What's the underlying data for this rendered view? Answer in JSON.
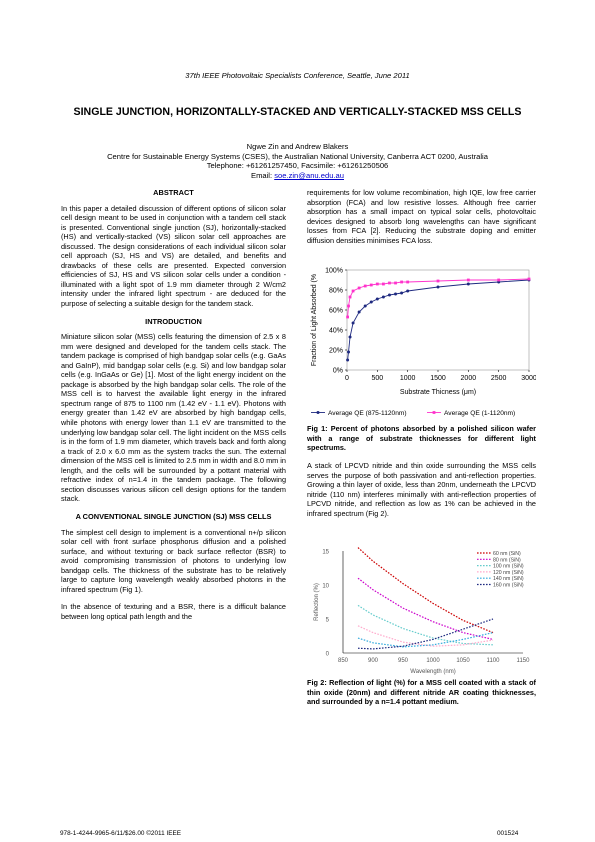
{
  "header": {
    "conference": "37th IEEE Photovoltaic Specialists Conference, Seattle, June 2011"
  },
  "paper": {
    "title": "SINGLE JUNCTION, HORIZONTALLY-STACKED AND VERTICALLY-STACKED MSS CELLS",
    "authors": "Ngwe Zin and Andrew Blakers",
    "affiliation": "Centre for Sustainable Energy Systems (CSES), the Australian National University, Canberra ACT 0200, Australia",
    "contact": "Telephone: +61261257450, Facsimile: +61261250506",
    "email_label": "Email: ",
    "email": "soe.zin@anu.edu.au"
  },
  "abstract": {
    "heading": "ABSTRACT",
    "text": "In this paper a detailed discussion of different options of silicon solar cell design meant to be used in conjunction with a tandem cell stack is presented. Conventional single junction (SJ), horizontally-stacked (HS) and vertically-stacked (VS) silicon solar cell approaches are discussed. The design considerations of each individual silicon solar cell approach (SJ, HS and VS) are detailed, and benefits and drawbacks of these cells are presented. Expected conversion efficiencies of SJ, HS and VS silicon solar cells under a condition - illuminated with a light spot of 1.9 mm diameter through 2 W/cm2 intensity under the infrared light spectrum - are deduced for the purpose of selecting a suitable design for the tandem stack."
  },
  "introduction": {
    "heading": "INTRODUCTION",
    "text": "Miniature silicon solar (MSS) cells featuring the dimension of 2.5 x 8 mm were designed and developed for the tandem cells stack. The tandem package is comprised of high bandgap solar cells (e.g. GaAs and GaInP), mid bandgap solar cells (e.g. Si) and low bandgap solar cells (e.g. InGaAs or Ge) [1]. Most of the light energy incident on the package is absorbed by the high bandgap solar cells. The role of the MSS cell is to harvest the available light energy in the infrared spectrum range of 875 to 1100 nm (1.42 eV - 1.1 eV). Photons with energy greater than 1.42 eV are absorbed by high bandgap cells, while photons with energy lower than 1.1 eV are transmitted to the underlying low bandgap solar cell. The light incident on the MSS cells is in the form of 1.9 mm diameter, which travels back and forth along a track of 2.0 x 6.0 mm as the system tracks the sun. The external dimension of the MSS cell is limited to 2.5 mm in width and 8.0 mm in length, and the cells will be surrounded by a pottant material with refractive index of n=1.4 in the tandem package. The following section discusses various silicon cell design options for the tandem stack."
  },
  "conventional": {
    "heading": "A CONVENTIONAL SINGLE JUNCTION (SJ) MSS CELLS",
    "p1": "The simplest cell design to implement is a conventional n+/p silicon solar cell with front surface phosphorus diffusion and a polished surface, and without texturing or back surface reflector (BSR) to avoid compromising transmission of photons to underlying low bandgap cells. The thickness of the substrate has to be relatively large to capture long wavelength weakly absorbed photons in the infrared spectrum (Fig 1).",
    "p2": "In the absence of texturing and a BSR, there is a difficult balance between long optical path length and the"
  },
  "right_column": {
    "p_top": "requirements for low volume recombination, high IQE, low free carrier absorption (FCA) and low resistive losses. Although free carrier absorption has a small impact on typical solar cells, photovoltaic devices designed to absorb long wavelengths can have significant losses from FCA [2]. Reducing the substrate doping and emitter diffusion densities minimises FCA loss.",
    "fig1_caption": "Fig 1: Percent of photons absorbed by a polished silicon wafer with a range of substrate thicknesses for different light spectrums.",
    "p_mid": "A stack of LPCVD nitride and thin oxide surrounding the MSS cells serves the purpose of both passivation and anti-reflection properties. Growing a thin layer of oxide, less than 20nm, underneath the LPCVD nitride (110 nm) interferes minimally with anti-reflection properties of LPCVD nitride, and reflection as low as 1% can be achieved in the infrared spectrum (Fig 2).",
    "fig2_caption": "Fig 2: Reflection of light (%) for a MSS cell coated with a stack of thin oxide (20nm) and different nitride AR coating thicknesses, and surrounded by a n=1.4 pottant medium."
  },
  "footer": {
    "left": "978-1-4244-9965-6/11/$26.00 ©2011 IEEE",
    "right": "001524"
  },
  "chart_data": [
    {
      "type": "line",
      "ylabel": "Fraction of Light Absorbed (%",
      "xlabel": "Substrate Thicness (μm)",
      "xlim": [
        0,
        3000
      ],
      "ylim": [
        0,
        100
      ],
      "x_ticks": [
        "0",
        "500",
        "1000",
        "1500",
        "2000",
        "2500",
        "3000"
      ],
      "y_ticks": [
        "0%",
        "20%",
        "40%",
        "60%",
        "80%",
        "100%"
      ],
      "legend_position": "bottom",
      "colors": [
        "#1f2a80",
        "#ff33cc"
      ],
      "series": [
        {
          "name": "Average QE (875-1120nm)",
          "x": [
            10,
            25,
            50,
            100,
            200,
            300,
            400,
            500,
            600,
            700,
            800,
            900,
            1000,
            1500,
            2000,
            2500,
            3000
          ],
          "y": [
            10,
            18,
            33,
            47,
            58,
            64,
            68,
            71,
            73,
            75,
            76,
            77,
            79,
            83,
            86,
            88,
            90
          ]
        },
        {
          "name": "Average QE (1-1120nm)",
          "x": [
            10,
            25,
            50,
            100,
            200,
            300,
            400,
            500,
            600,
            700,
            800,
            900,
            1000,
            1500,
            2000,
            2500,
            3000
          ],
          "y": [
            53,
            64,
            73,
            79,
            82,
            84,
            85,
            86,
            86,
            87,
            87,
            88,
            88,
            89,
            90,
            90,
            91
          ]
        }
      ]
    },
    {
      "type": "line",
      "ylabel": "Reflection (%)",
      "xlabel": "Wavelength (nm)",
      "xlim": [
        850,
        1150
      ],
      "ylim": [
        0,
        15
      ],
      "x_ticks": [
        "850",
        "900",
        "950",
        "1000",
        "1050",
        "1100",
        "1150"
      ],
      "y_ticks": [
        "0",
        "5",
        "10",
        "15"
      ],
      "legend_position": "top-right",
      "colors": [
        "#cc0000",
        "#cc00cc",
        "#66cccc",
        "#ffaacc",
        "#33aadd",
        "#1f2a80"
      ],
      "series": [
        {
          "name": "60 nm (SiN)",
          "x": [
            875,
            900,
            950,
            1000,
            1050,
            1100
          ],
          "y": [
            15.5,
            13.5,
            10.2,
            7.3,
            4.8,
            3.0
          ]
        },
        {
          "name": "80 nm (SiN)",
          "x": [
            875,
            900,
            950,
            1000,
            1050,
            1100
          ],
          "y": [
            11.0,
            9.3,
            6.6,
            4.6,
            3.0,
            2.0
          ]
        },
        {
          "name": "100 nm (SiN)",
          "x": [
            875,
            900,
            950,
            1000,
            1050,
            1100
          ],
          "y": [
            7.0,
            5.6,
            3.6,
            2.2,
            1.4,
            1.2
          ]
        },
        {
          "name": "120 nm (SiN)",
          "x": [
            875,
            900,
            950,
            1000,
            1050,
            1100
          ],
          "y": [
            4.0,
            3.0,
            1.6,
            1.0,
            1.2,
            1.9
          ]
        },
        {
          "name": "140 nm (SiN)",
          "x": [
            875,
            900,
            950,
            1000,
            1050,
            1100
          ],
          "y": [
            2.2,
            1.5,
            0.9,
            1.2,
            2.0,
            3.0
          ]
        },
        {
          "name": "160 nm (SiN)",
          "x": [
            875,
            900,
            950,
            1000,
            1050,
            1100
          ],
          "y": [
            0.7,
            0.6,
            1.0,
            2.0,
            3.5,
            5.0
          ]
        }
      ]
    }
  ]
}
